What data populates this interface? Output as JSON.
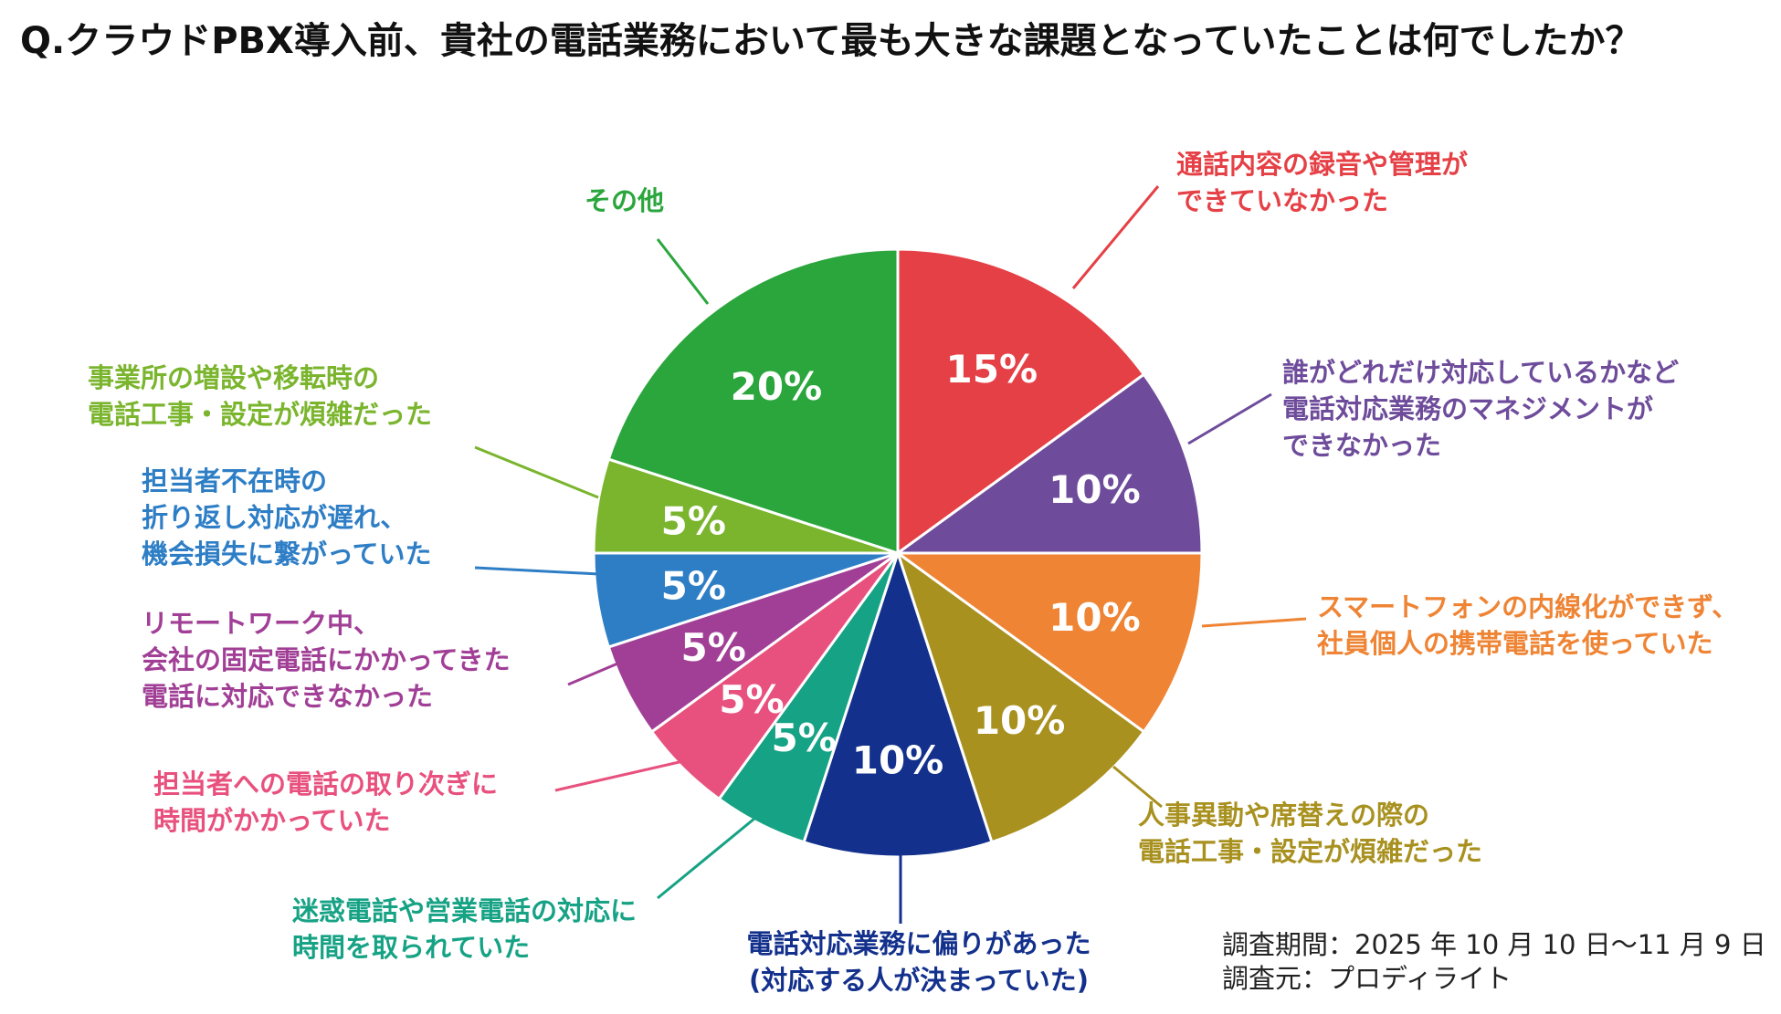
{
  "chart_data": {
    "type": "pie",
    "title": "Q.クラウドPBX導入前、貴社の電話業務において最も大きな課題となっていたことは何でしたか？",
    "slices": [
      {
        "label_lines": [
          "通話内容の録音や管理が",
          "できていなかった"
        ],
        "value": 15,
        "value_label": "15%",
        "color": "#E54046"
      },
      {
        "label_lines": [
          "誰がどれだけ対応しているかなど",
          "電話対応業務のマネジメントが",
          "できなかった"
        ],
        "value": 10,
        "value_label": "10%",
        "color": "#6E4C9B"
      },
      {
        "label_lines": [
          "スマートフォンの内線化ができず、",
          "社員個人の携帯電話を使っていた"
        ],
        "value": 10,
        "value_label": "10%",
        "color": "#EE8434"
      },
      {
        "label_lines": [
          "人事異動や席替えの際の",
          "電話工事・設定が煩雑だった"
        ],
        "value": 10,
        "value_label": "10%",
        "color": "#A8911F"
      },
      {
        "label_lines": [
          "電話対応業務に偏りがあった",
          "(対応する人が決まっていた)"
        ],
        "value": 10,
        "value_label": "10%",
        "color": "#13318C"
      },
      {
        "label_lines": [
          "迷惑電話や営業電話の対応に",
          "時間を取られていた"
        ],
        "value": 5,
        "value_label": "5%",
        "color": "#16A284"
      },
      {
        "label_lines": [
          "担当者への電話の取り次ぎに",
          "時間がかかっていた"
        ],
        "value": 5,
        "value_label": "5%",
        "color": "#E8517E"
      },
      {
        "label_lines": [
          "リモートワーク中、",
          "会社の固定電話にかかってきた",
          "電話に対応できなかった"
        ],
        "value": 5,
        "value_label": "5%",
        "color": "#A13F96"
      },
      {
        "label_lines": [
          "担当者不在時の",
          "折り返し対応が遅れ、",
          "機会損失に繋がっていた"
        ],
        "value": 5,
        "value_label": "5%",
        "color": "#2E7EC6"
      },
      {
        "label_lines": [
          "事業所の増設や移転時の",
          "電話工事・設定が煩雑だった"
        ],
        "value": 5,
        "value_label": "5%",
        "color": "#7AB52D"
      },
      {
        "label_lines": [
          "その他"
        ],
        "value": 20,
        "value_label": "20%",
        "color": "#2AA63C"
      }
    ],
    "source_lines": [
      "調査期間：2025 年 10 月 10 日〜11 月 9 日",
      "調査元：プロディライト"
    ]
  }
}
